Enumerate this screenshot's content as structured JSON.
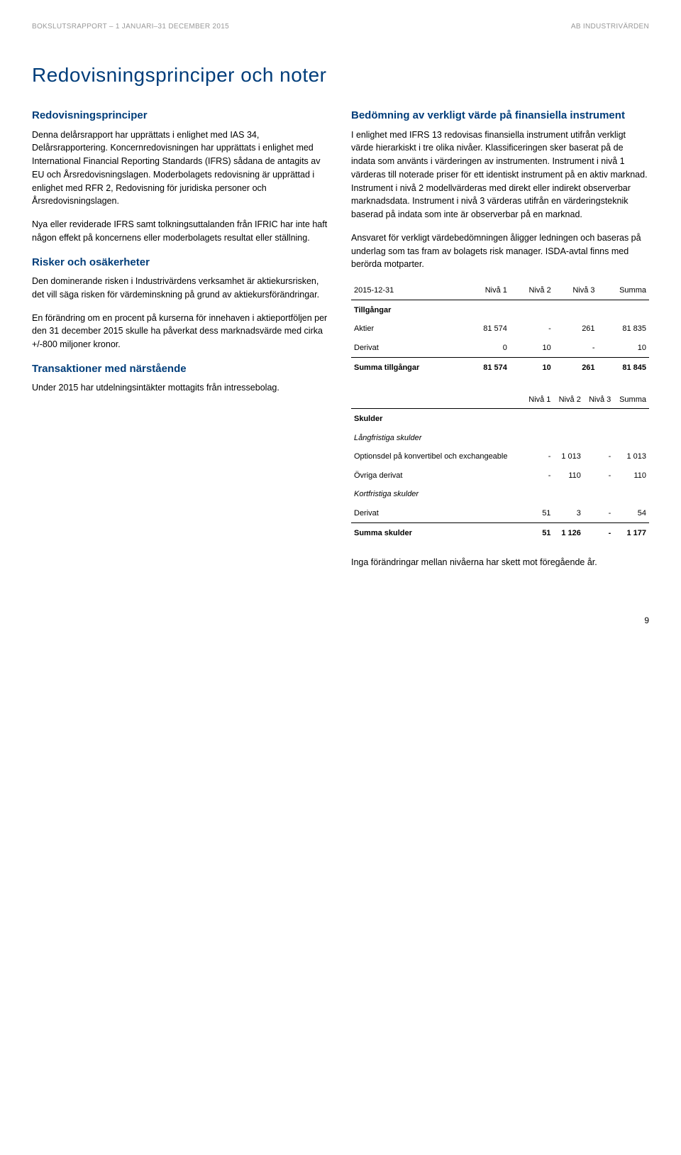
{
  "header": {
    "left": "BOKSLUTSRAPPORT – 1 JANUARI–31 DECEMBER 2015",
    "right": "AB INDUSTRIVÄRDEN"
  },
  "title": "Redovisningsprinciper och noter",
  "left_col": {
    "h_principles": "Redovisningsprinciper",
    "p1": "Denna delårsrapport har upprättats i enlighet med IAS 34, Delårsrapportering. Koncernredovisningen har upprättats i enlighet med International Financial Reporting Standards (IFRS) sådana de antagits av EU och Årsredovisningslagen. Moderbolagets redovisning är upprättad i enlighet med RFR 2, Redovisning för juridiska personer och Årsredovisningslagen.",
    "p2": "Nya eller reviderade IFRS samt tolkningsuttalanden från IFRIC har inte haft någon effekt på koncernens eller moderbolagets resultat eller ställning.",
    "h_risks": "Risker och osäkerheter",
    "p_risks": "Den dominerande risken i Industrivärdens verksamhet är aktiekursrisken, det vill säga risken för värdeminskning på grund av aktiekursförändringar.",
    "p_change": "En förändring om en procent på kurserna för innehaven i aktieportföljen per den 31 december 2015 skulle ha påverkat dess marknadsvärde med cirka +/-800 miljoner kronor.",
    "h_trans": "Transaktioner med närstående",
    "p_trans": "Under 2015 har utdelningsintäkter mottagits från intressebolag."
  },
  "right_col": {
    "h_fair": "Bedömning av verkligt värde på finansiella instrument",
    "p_fair": "I enlighet med IFRS 13 redovisas finansiella instrument utifrån verkligt värde hierarkiskt i tre olika nivåer. Klassificeringen sker baserat på de indata som använts i värderingen av instrumenten. Instrument i nivå 1 värderas till noterade priser för ett identiskt instrument på en aktiv marknad. Instrument i nivå 2 modellvärderas med direkt eller indirekt observerbar marknadsdata. Instrument i nivå 3 värderas utifrån en värderingsteknik baserad på indata som inte är observerbar på en marknad.",
    "p_resp": "Ansvaret för verkligt värdebedömningen åligger ledningen och baseras på underlag som tas fram av bolagets risk manager. ISDA-avtal finns med berörda motparter."
  },
  "table1": {
    "date": "2015-12-31",
    "cols": [
      "Nivå 1",
      "Nivå 2",
      "Nivå 3",
      "Summa"
    ],
    "section": "Tillgångar",
    "row1_label": "Aktier",
    "row1": [
      "81 574",
      "-",
      "261",
      "81 835"
    ],
    "row2_label": "Derivat",
    "row2": [
      "0",
      "10",
      "-",
      "10"
    ],
    "sum_label": "Summa tillgångar",
    "sum": [
      "81 574",
      "10",
      "261",
      "81 845"
    ]
  },
  "table2": {
    "cols": [
      "Nivå 1",
      "Nivå 2",
      "Nivå 3",
      "Summa"
    ],
    "section": "Skulder",
    "sub1": "Långfristiga skulder",
    "row1_label": "Optionsdel på konvertibel och exchangeable",
    "row1": [
      "-",
      "1 013",
      "-",
      "1 013"
    ],
    "row2_label": "Övriga derivat",
    "row2": [
      "-",
      "110",
      "-",
      "110"
    ],
    "sub2": "Kortfristiga skulder",
    "row3_label": "Derivat",
    "row3": [
      "51",
      "3",
      "-",
      "54"
    ],
    "sum_label": "Summa skulder",
    "sum": [
      "51",
      "1 126",
      "-",
      "1 177"
    ]
  },
  "footer_note": "Inga förändringar mellan nivåerna har skett mot föregående år.",
  "page_number": "9"
}
